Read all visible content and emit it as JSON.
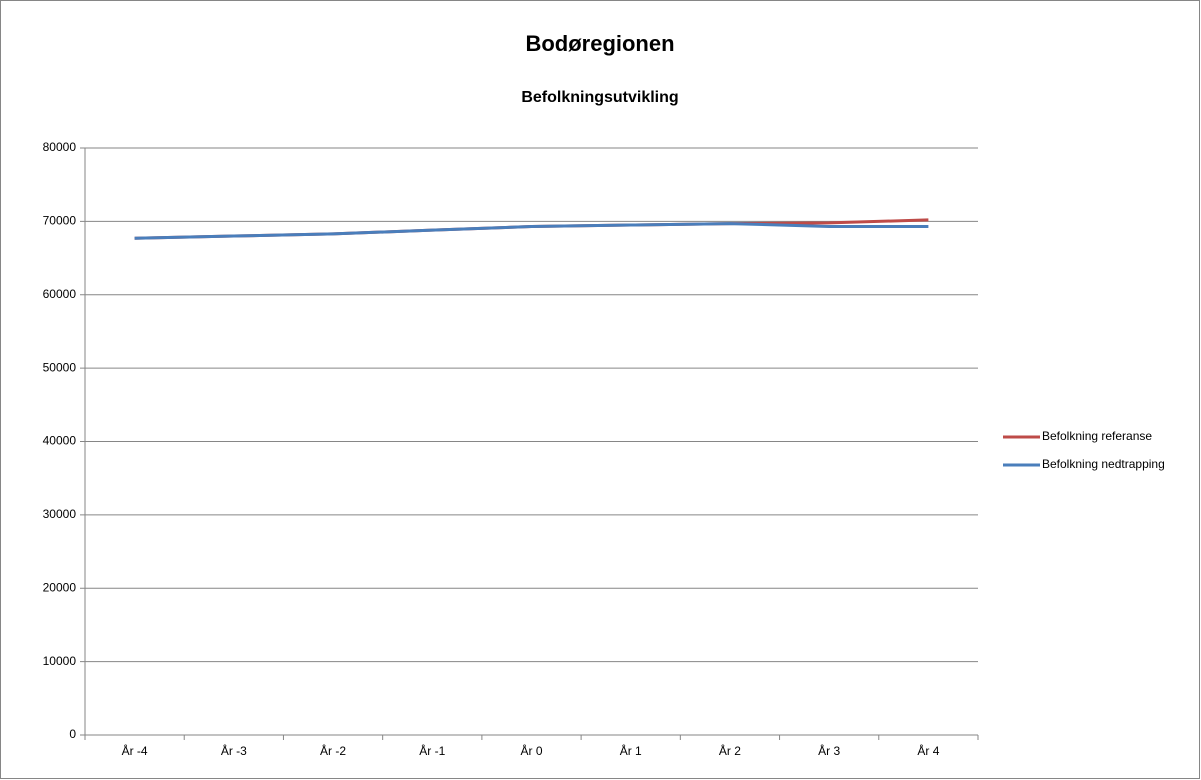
{
  "chart_data": {
    "type": "line",
    "title": "Bodøregionen",
    "subtitle": "Befolkningsutvikling",
    "categories": [
      "År -4",
      "År -3",
      "År -2",
      "År -1",
      "År 0",
      "År 1",
      "År 2",
      "År 3",
      "År 4"
    ],
    "series": [
      {
        "name": "Befolkning referanse",
        "color": "#be4b48",
        "values": [
          67700,
          68000,
          68300,
          68800,
          69300,
          69500,
          69700,
          69800,
          70200
        ]
      },
      {
        "name": "Befolkning nedtrapping",
        "color": "#4a7ebb",
        "values": [
          67700,
          68000,
          68300,
          68800,
          69300,
          69500,
          69700,
          69300,
          69300
        ]
      }
    ],
    "ylim": [
      0,
      80000
    ],
    "yticks": [
      0,
      10000,
      20000,
      30000,
      40000,
      50000,
      60000,
      70000,
      80000
    ],
    "grid": true,
    "legend": "right"
  }
}
